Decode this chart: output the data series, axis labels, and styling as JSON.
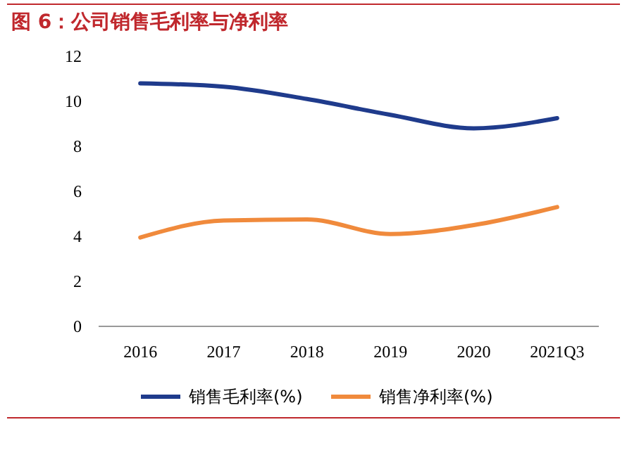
{
  "chart_data": {
    "type": "line",
    "title": "图 6：公司销售毛利率与净利率",
    "categories": [
      "2016",
      "2017",
      "2018",
      "2019",
      "2020",
      "2021Q3"
    ],
    "series": [
      {
        "name": "销售毛利率(%)",
        "color": "#1f3b8c",
        "values": [
          10.8,
          10.65,
          10.1,
          9.4,
          8.8,
          9.25
        ]
      },
      {
        "name": "销售净利率(%)",
        "color": "#f08a3c",
        "values": [
          3.95,
          4.7,
          4.75,
          4.1,
          4.5,
          5.3
        ]
      }
    ],
    "ylim": [
      0,
      12
    ],
    "yticks": [
      0,
      2,
      4,
      6,
      8,
      10,
      12
    ],
    "legend": "bottom",
    "grid": false
  }
}
